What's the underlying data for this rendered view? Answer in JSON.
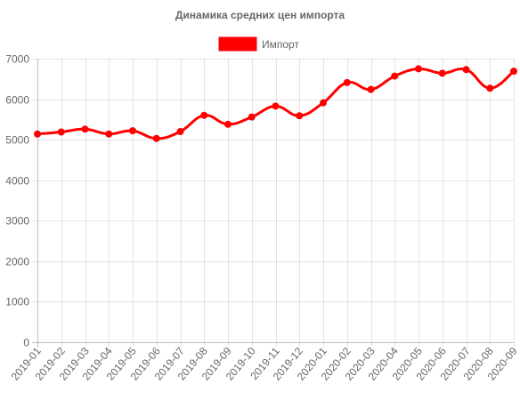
{
  "chart_data": {
    "type": "line",
    "title": "Динамика средних цен импорта",
    "legend": {
      "position": "top",
      "entries": [
        "Импорт"
      ]
    },
    "grid": true,
    "x": [
      "2019-01",
      "2019-02",
      "2019-03",
      "2019-04",
      "2019-05",
      "2019-06",
      "2019-07",
      "2019-08",
      "2019-09",
      "2019-10",
      "2019-11",
      "2019-12",
      "2020-01",
      "2020-02",
      "2020-03",
      "2020-04",
      "2020-05",
      "2020-06",
      "2020-07",
      "2020-08",
      "2020-09"
    ],
    "ylim": [
      0,
      7000
    ],
    "yticks": [
      0,
      1000,
      2000,
      3000,
      4000,
      5000,
      6000,
      7000
    ],
    "series": [
      {
        "name": "Импорт",
        "color": "#ff0000",
        "values": [
          5140,
          5190,
          5260,
          5140,
          5220,
          5030,
          5200,
          5600,
          5380,
          5560,
          5830,
          5590,
          5910,
          6410,
          6240,
          6570,
          6750,
          6640,
          6730,
          6270,
          6690
        ]
      }
    ]
  }
}
